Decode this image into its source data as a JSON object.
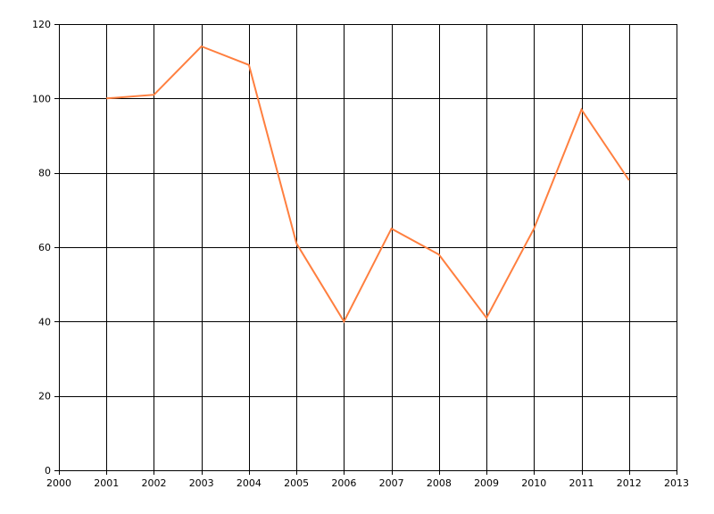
{
  "chart_data": {
    "type": "line",
    "title": "",
    "xlabel": "",
    "ylabel": "",
    "xlim": [
      2000,
      2013
    ],
    "ylim": [
      0,
      120
    ],
    "x_ticks": [
      2000,
      2001,
      2002,
      2003,
      2004,
      2005,
      2006,
      2007,
      2008,
      2009,
      2010,
      2011,
      2012,
      2013
    ],
    "y_ticks": [
      0,
      20,
      40,
      60,
      80,
      100,
      120
    ],
    "grid": true,
    "legend": "none",
    "series": [
      {
        "color": "#ff7f3f",
        "x": [
          2001,
          2002,
          2003,
          2004,
          2005,
          2006,
          2007,
          2008,
          2009,
          2010,
          2011,
          2012
        ],
        "values": [
          100,
          101,
          114,
          109,
          61,
          40,
          65,
          58,
          41,
          65,
          97,
          78
        ]
      }
    ]
  }
}
